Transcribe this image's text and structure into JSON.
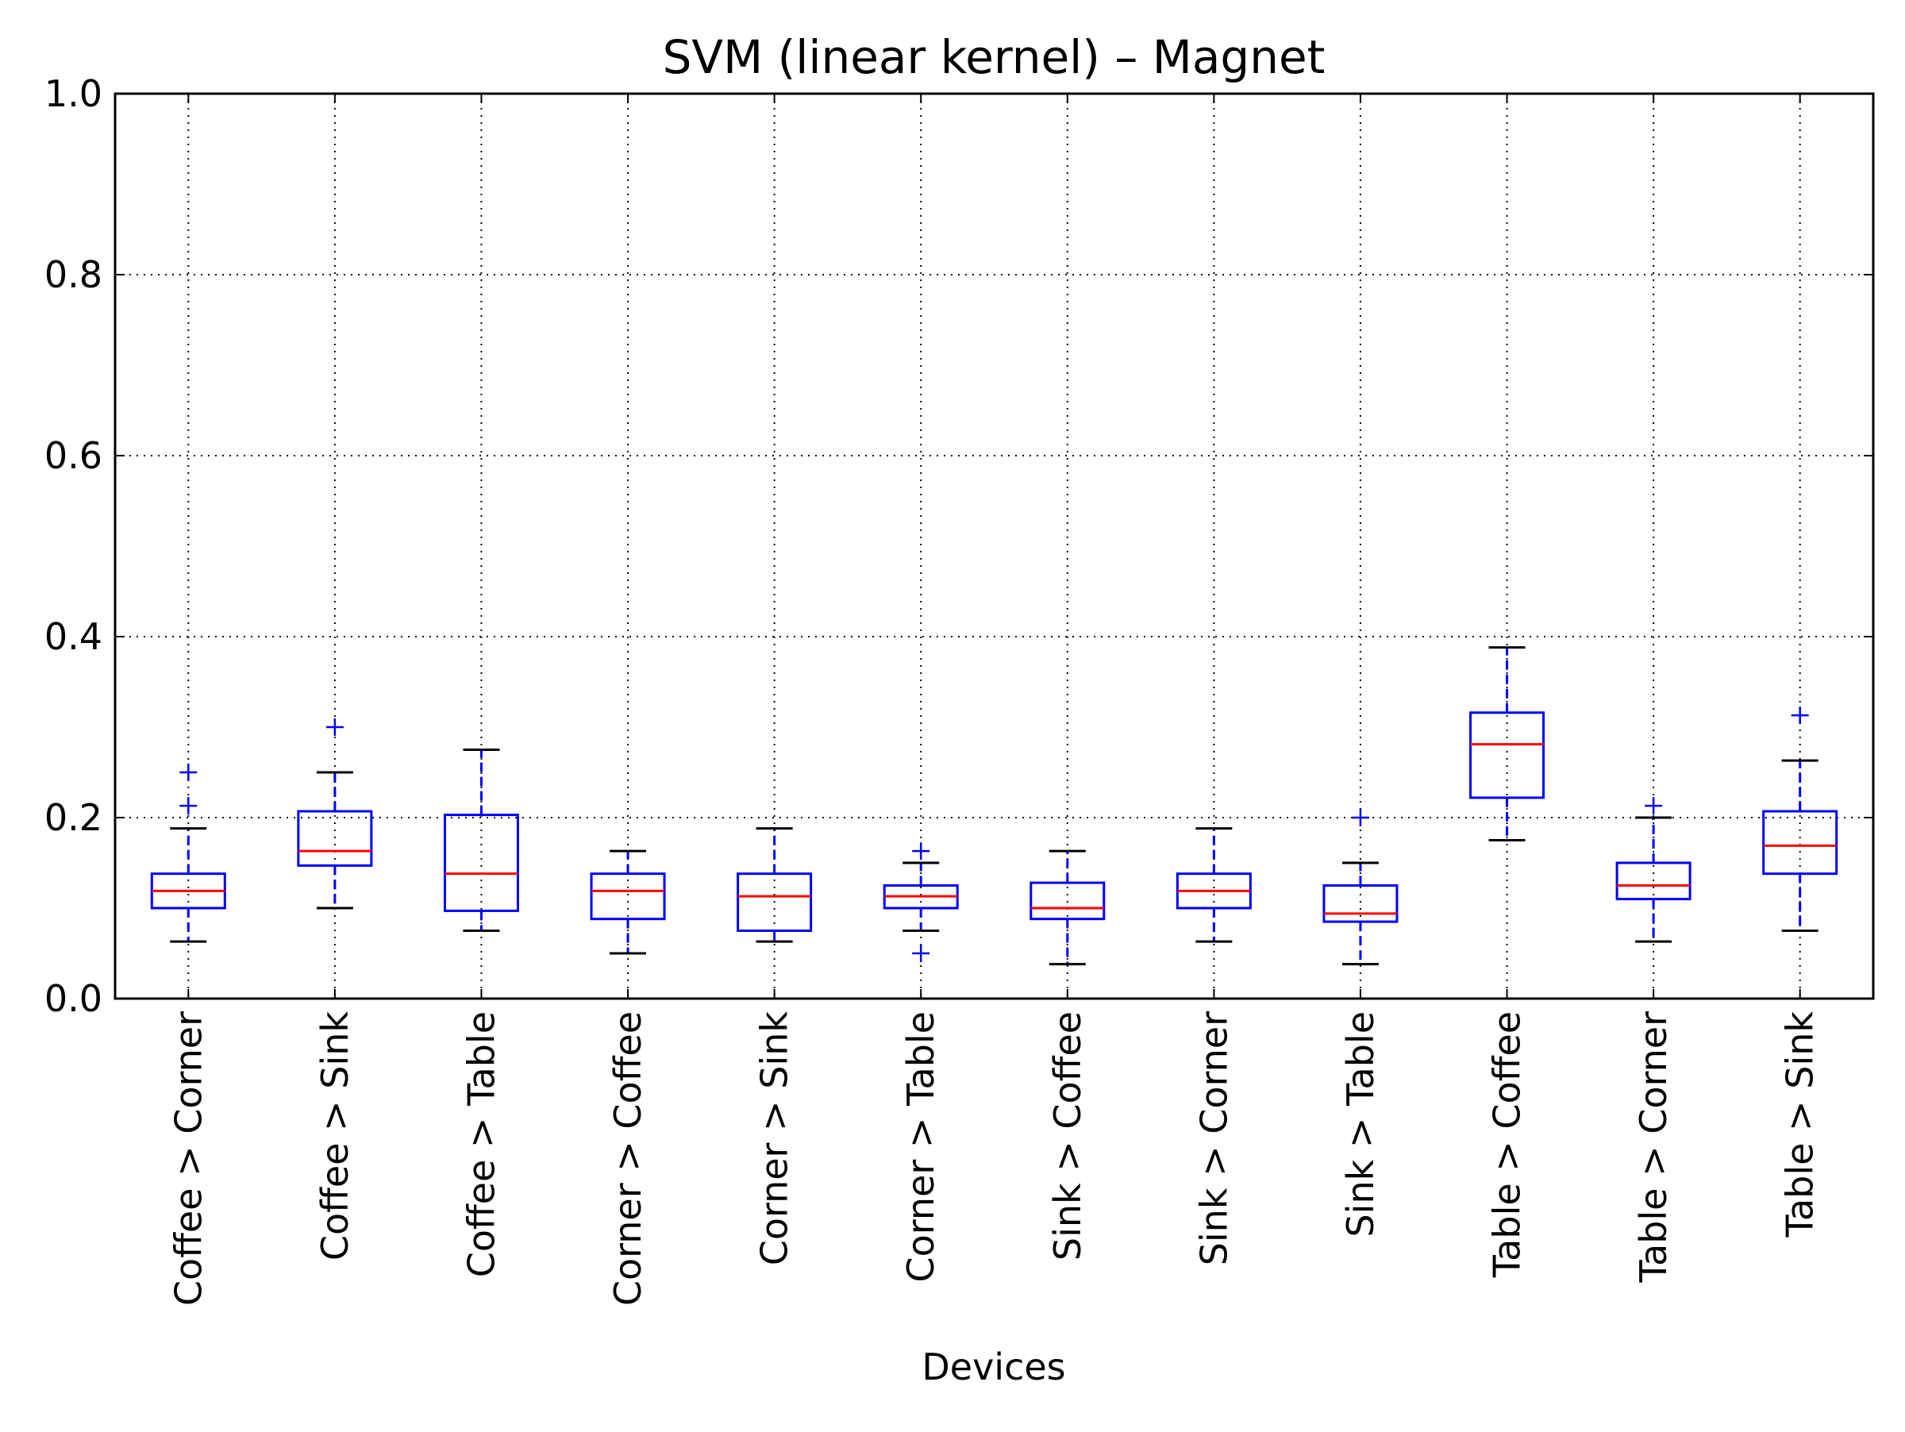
{
  "chart_data": {
    "type": "box",
    "title": "SVM (linear kernel) – Magnet",
    "xlabel": "Devices",
    "ylabel": "",
    "ylim": [
      0,
      1
    ],
    "yticks": [
      "0.0",
      "0.2",
      "0.4",
      "0.6",
      "0.8",
      "1.0"
    ],
    "ytick_values": [
      0,
      0.2,
      0.4,
      0.6,
      0.8,
      1.0
    ],
    "grid": true,
    "colors": {
      "box": "#0000ff",
      "median": "#ff0000",
      "whisker_cap": "#000000",
      "flier": "#0000ff"
    },
    "categories": [
      "Coffee > Corner",
      "Coffee > Sink",
      "Coffee > Table",
      "Corner > Coffee",
      "Corner > Sink",
      "Corner > Table",
      "Sink > Coffee",
      "Sink > Corner",
      "Sink > Table",
      "Table > Coffee",
      "Table > Corner",
      "Table > Sink"
    ],
    "boxes": [
      {
        "whislo": 0.063,
        "q1": 0.1,
        "med": 0.119,
        "q3": 0.138,
        "whishi": 0.188,
        "fliers": [
          0.213,
          0.25
        ]
      },
      {
        "whislo": 0.1,
        "q1": 0.147,
        "med": 0.163,
        "q3": 0.207,
        "whishi": 0.25,
        "fliers": [
          0.3
        ]
      },
      {
        "whislo": 0.075,
        "q1": 0.097,
        "med": 0.138,
        "q3": 0.203,
        "whishi": 0.275,
        "fliers": []
      },
      {
        "whislo": 0.05,
        "q1": 0.088,
        "med": 0.119,
        "q3": 0.138,
        "whishi": 0.163,
        "fliers": []
      },
      {
        "whislo": 0.063,
        "q1": 0.075,
        "med": 0.113,
        "q3": 0.138,
        "whishi": 0.188,
        "fliers": []
      },
      {
        "whislo": 0.075,
        "q1": 0.1,
        "med": 0.113,
        "q3": 0.125,
        "whishi": 0.15,
        "fliers": [
          0.05,
          0.163
        ]
      },
      {
        "whislo": 0.038,
        "q1": 0.088,
        "med": 0.1,
        "q3": 0.128,
        "whishi": 0.163,
        "fliers": []
      },
      {
        "whislo": 0.063,
        "q1": 0.1,
        "med": 0.119,
        "q3": 0.138,
        "whishi": 0.188,
        "fliers": []
      },
      {
        "whislo": 0.038,
        "q1": 0.085,
        "med": 0.094,
        "q3": 0.125,
        "whishi": 0.15,
        "fliers": [
          0.2
        ]
      },
      {
        "whislo": 0.175,
        "q1": 0.222,
        "med": 0.281,
        "q3": 0.316,
        "whishi": 0.388,
        "fliers": []
      },
      {
        "whislo": 0.063,
        "q1": 0.11,
        "med": 0.125,
        "q3": 0.15,
        "whishi": 0.2,
        "fliers": [
          0.213
        ]
      },
      {
        "whislo": 0.075,
        "q1": 0.138,
        "med": 0.169,
        "q3": 0.207,
        "whishi": 0.263,
        "fliers": [
          0.313
        ]
      }
    ]
  }
}
